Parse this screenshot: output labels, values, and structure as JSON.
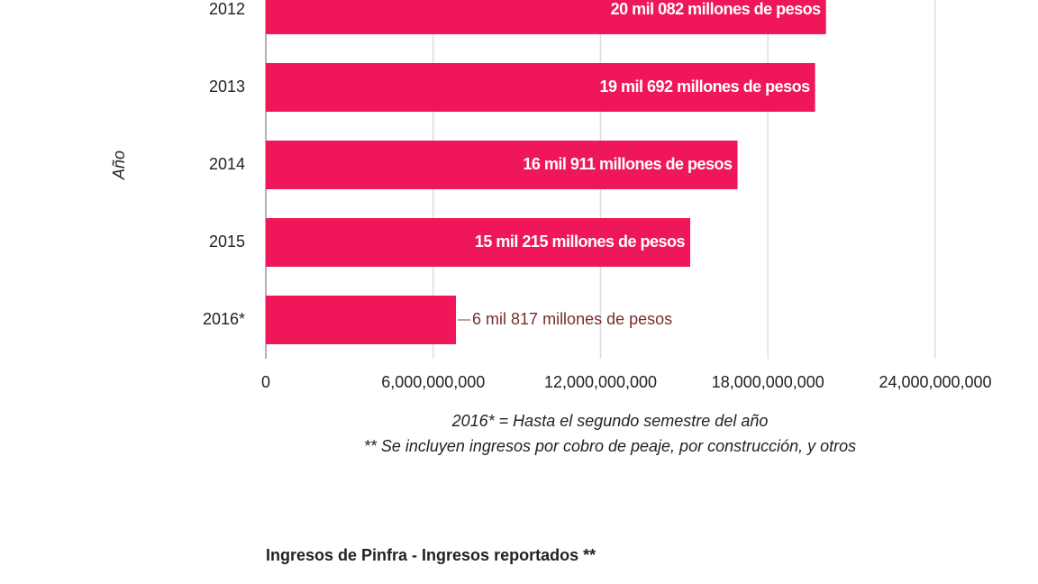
{
  "chart_data": {
    "type": "barh",
    "title": "Ingresos de Pinfra - Ingresos reportados **",
    "ylabel": "Año",
    "categories": [
      "2012",
      "2013",
      "2014",
      "2015",
      "2016*"
    ],
    "values": [
      20082000000,
      19692000000,
      16911000000,
      15215000000,
      6817000000
    ],
    "value_labels": [
      "20 mil 082 millones de pesos",
      "19 mil 692 millones de pesos",
      "16 mil 911 millones de pesos",
      "15 mil 215 millones de pesos",
      "6 mil 817 millones de pesos"
    ],
    "color": "#ef1659",
    "xlim": [
      0,
      24000000000
    ],
    "xticks": [
      0,
      {
        "value": 6000000000,
        "label": "6,000,000,000"
      },
      {
        "value": 12000000000,
        "label": "12,000,000,000"
      },
      {
        "value": 18000000000,
        "label": "18,000,000,000"
      },
      {
        "value": 24000000000,
        "label": "24,000,000,000"
      }
    ],
    "grid": true,
    "notes": [
      "2016* = Hasta el segundo semestre del año",
      "** Se incluyen ingresos por cobro de peaje, por construcción, y otros"
    ]
  }
}
